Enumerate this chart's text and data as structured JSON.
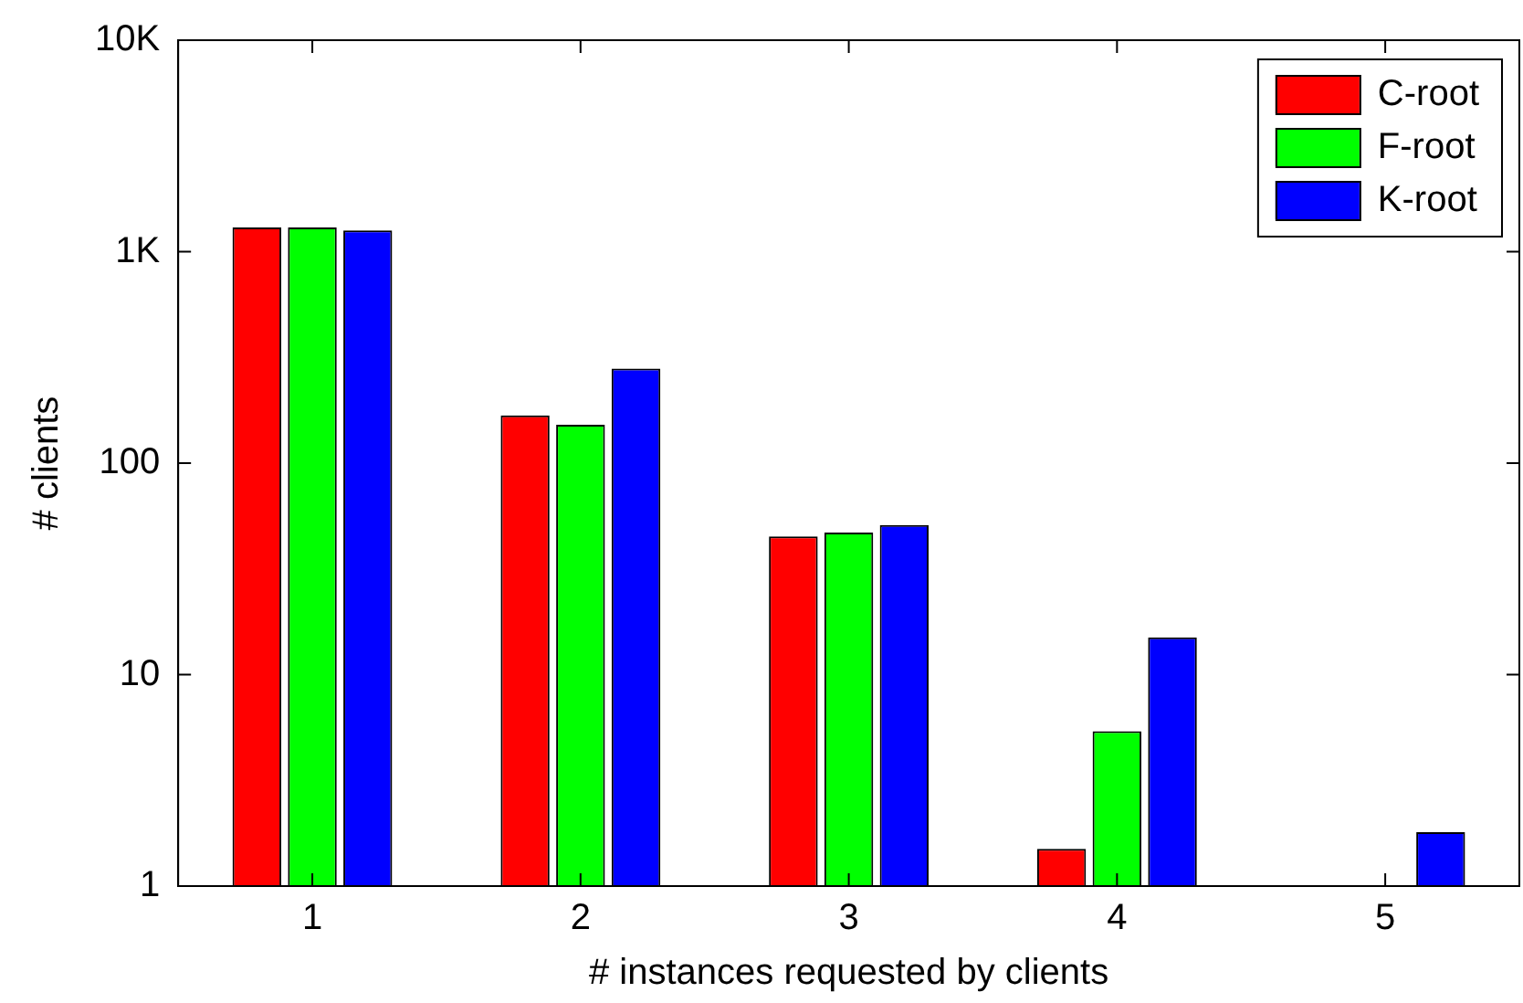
{
  "chart_data": {
    "type": "bar",
    "xlabel": "# instances requested by clients",
    "ylabel": "# clients",
    "categories": [
      "1",
      "2",
      "3",
      "4",
      "5"
    ],
    "series": [
      {
        "name": "C-root",
        "color": "#ff0000",
        "values": [
          1300,
          168,
          45,
          1.5,
          null
        ]
      },
      {
        "name": "F-root",
        "color": "#00ff00",
        "values": [
          1300,
          152,
          47,
          5.4,
          null
        ]
      },
      {
        "name": "K-root",
        "color": "#0000ff",
        "values": [
          1260,
          280,
          51,
          15,
          1.8
        ]
      }
    ],
    "log": "y",
    "ylim": [
      1,
      10000
    ],
    "yticks": [
      1,
      10,
      100,
      {
        "value": 1000,
        "label": "1K"
      },
      {
        "value": 10000,
        "label": "10K"
      }
    ],
    "grid": false,
    "legend": "top right"
  }
}
